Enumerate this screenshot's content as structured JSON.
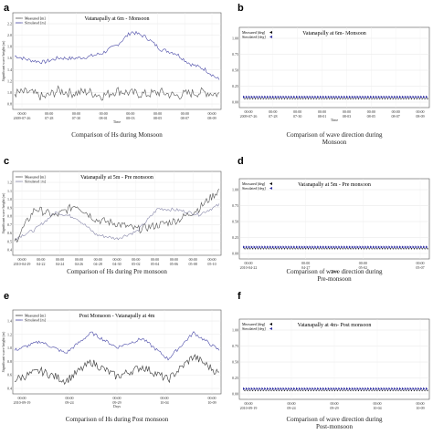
{
  "panels": [
    {
      "letter": "a",
      "title": "Vatanapally at 6m - Monsoon",
      "legend": [
        "Measured [m]",
        "Simulated [m]"
      ],
      "ylabel": "Significant wave height (m)",
      "xlabel": "Time",
      "caption": "Comparison  of Hs during Monsoon",
      "yticks": [
        "2.2",
        "2.0",
        "1.8",
        "1.6",
        "1.4",
        "1.2",
        "1.0",
        "0.8"
      ],
      "xticks": [
        [
          "00:00",
          "2009-07-26"
        ],
        [
          "00:00",
          "07-28"
        ],
        [
          "00:00",
          "07-30"
        ],
        [
          "00:00",
          "08-01"
        ],
        [
          "00:00",
          "08-03"
        ],
        [
          "00:00",
          "08-05"
        ],
        [
          "00:00",
          "08-07"
        ],
        [
          "00:00",
          "08-09"
        ]
      ],
      "colors": {
        "measured": "#555555",
        "simulated": "#4a4aa8"
      }
    },
    {
      "letter": "b",
      "title": "Vatanapally at 6m- Monsoon",
      "legend": [
        "Measured [deg]",
        "Simulated [deg]"
      ],
      "xlabel": "Time",
      "caption": "Comparison of wave direction during Monsoon",
      "yticks": [
        "1.00",
        "0.75",
        "0.50",
        "0.25",
        "0.00"
      ],
      "xticks": [
        [
          "00:00",
          "2009-07-26"
        ],
        [
          "00:00",
          "07-28"
        ],
        [
          "00:00",
          "07-30"
        ],
        [
          "00:00",
          "08-01"
        ],
        [
          "00:00",
          "08-03"
        ],
        [
          "00:00",
          "08-05"
        ],
        [
          "00:00",
          "08-07"
        ],
        [
          "00:00",
          "08-09"
        ]
      ],
      "colors": {
        "measured": "#000000",
        "simulated": "#2a2aa0"
      }
    },
    {
      "letter": "c",
      "title": "Vatanapally at 5m - Pre monsoon",
      "legend": [
        "Measured [m]",
        "Simulated [m]"
      ],
      "ylabel": "Significant wave height (m)",
      "xlabel": "",
      "caption": "Comparison of Hs during Pre monsoon",
      "yticks": [
        "1.2",
        "1.1",
        "1.0",
        "0.9",
        "0.8",
        "0.7",
        "0.6",
        "0.5",
        "0.4"
      ],
      "xticks": [
        [
          "00:00",
          "2010-04-29"
        ],
        [
          "00:00",
          "04-22"
        ],
        [
          "00:00",
          "04-24"
        ],
        [
          "00:00",
          "04-26"
        ],
        [
          "00:00",
          "04-28"
        ],
        [
          "00:00",
          "04-30"
        ],
        [
          "00:00",
          "05-02"
        ],
        [
          "00:00",
          "05-04"
        ],
        [
          "00:00",
          "05-06"
        ],
        [
          "00:00",
          "05-08"
        ],
        [
          "00:00",
          "05-10"
        ]
      ],
      "colors": {
        "measured": "#555555",
        "simulated": "#8888aa"
      }
    },
    {
      "letter": "d",
      "title": "Vatanapally at 5m - Pre monsoon",
      "legend": [
        "Measured [deg]",
        "Simulated [deg]"
      ],
      "xlabel": "Time",
      "caption": "Comparison of wave direction during Pre-monsoon",
      "yticks": [
        "1.00",
        "0.75",
        "0.50",
        "0.25",
        "0.00"
      ],
      "xticks": [
        [
          "00:00",
          "2010-04-22"
        ],
        [
          "00:00",
          "04-27"
        ],
        [
          "00:00",
          "05-02"
        ],
        [
          "00:00",
          "05-07"
        ]
      ],
      "colors": {
        "measured": "#000000",
        "simulated": "#2a2aa0"
      }
    },
    {
      "letter": "e",
      "title": "Post Monsoon - Vatanapally at 4m",
      "legend": [
        "Measured [m]",
        "Simulated [m]"
      ],
      "ylabel": "Significant wave height (m)",
      "xlabel": "Days",
      "caption": "Comparison of Hs during Post monsoon",
      "yticks": [
        "1.4",
        "1.2",
        "1.0",
        "0.8",
        "0.6",
        "0.4"
      ],
      "xticks": [
        [
          "00:00",
          "2010-09-19"
        ],
        [
          "00:00",
          "09-24"
        ],
        [
          "00:00",
          "09-29"
        ],
        [
          "00:00",
          "10-04"
        ],
        [
          "00:00",
          "10-09"
        ]
      ],
      "colors": {
        "measured": "#333333",
        "simulated": "#4a4aa8"
      }
    },
    {
      "letter": "f",
      "title": "Vatanapally at 4m- Post monsoon",
      "legend": [
        "Measured [deg]",
        "Simulated [deg]"
      ],
      "xlabel": "",
      "caption": "Comparison of wave direction during Post-monsoon",
      "yticks": [
        "1.00",
        "0.75",
        "0.50",
        "0.25",
        "0.00"
      ],
      "xticks": [
        [
          "00:00",
          "2010-09-19"
        ],
        [
          "00:00",
          "09-24"
        ],
        [
          "00:00",
          "09-29"
        ],
        [
          "00:00",
          "10-04"
        ],
        [
          "00:00",
          "10-09"
        ]
      ],
      "colors": {
        "measured": "#000000",
        "simulated": "#2a2aa0"
      }
    }
  ],
  "chart_data": [
    {
      "type": "line",
      "panel": "a",
      "title": "Vatanapally at 6m - Monsoon",
      "xlabel": "Time",
      "ylabel": "Significant wave height (m)",
      "ylim": [
        0.8,
        2.3
      ],
      "x": [
        "2009-07-26",
        "07-27",
        "07-28",
        "07-29",
        "07-30",
        "07-31",
        "08-01",
        "08-02",
        "08-03",
        "08-04",
        "08-05",
        "08-06",
        "08-07",
        "08-08",
        "08-09"
      ],
      "series": [
        {
          "name": "Simulated [m]",
          "values": [
            1.7,
            1.62,
            1.58,
            1.66,
            1.65,
            1.68,
            1.75,
            1.9,
            2.15,
            2.05,
            1.82,
            1.75,
            1.55,
            1.45,
            1.25
          ]
        },
        {
          "name": "Measured [m]",
          "values": [
            1.0,
            1.02,
            0.92,
            1.05,
            1.0,
            1.03,
            0.95,
            1.05,
            1.0,
            0.98,
            1.02,
            0.95,
            1.0,
            1.02,
            0.98
          ]
        }
      ]
    },
    {
      "type": "scatter",
      "panel": "b",
      "title": "Vatanapally at 6m- Monsoon",
      "xlabel": "Time",
      "ylim": [
        0,
        1
      ],
      "series": [
        {
          "name": "Measured [deg]",
          "level": 0.08
        },
        {
          "name": "Simulated [deg]",
          "level": 0.08
        }
      ]
    },
    {
      "type": "line",
      "panel": "c",
      "title": "Vatanapally at 5m - Pre monsoon",
      "ylabel": "Significant wave height (m)",
      "ylim": [
        0.35,
        1.25
      ],
      "x": [
        "2010-04-29",
        "04-22",
        "04-24",
        "04-26",
        "04-28",
        "04-30",
        "05-02",
        "05-04",
        "05-06",
        "05-08",
        "05-10"
      ],
      "series": [
        {
          "name": "Simulated [m]",
          "values": [
            0.5,
            0.62,
            0.85,
            0.78,
            0.55,
            0.5,
            0.6,
            0.9,
            0.88,
            0.82,
            0.95
          ]
        },
        {
          "name": "Measured [m]",
          "values": [
            0.45,
            0.9,
            0.8,
            0.95,
            0.75,
            0.7,
            0.62,
            0.68,
            0.75,
            0.9,
            1.15
          ]
        }
      ]
    },
    {
      "type": "scatter",
      "panel": "d",
      "title": "Vatanapally at 5m - Pre monsoon",
      "xlabel": "Time",
      "ylim": [
        0,
        1
      ],
      "series": [
        {
          "name": "Measured [deg]",
          "level": 0.1
        },
        {
          "name": "Simulated [deg]",
          "level": 0.1
        }
      ]
    },
    {
      "type": "line",
      "panel": "e",
      "title": "Post Monsoon - Vatanapally at 4m",
      "xlabel": "Days",
      "ylabel": "Significant wave height (m)",
      "ylim": [
        0.35,
        1.5
      ],
      "x": [
        "2010-09-19",
        "09-21",
        "09-24",
        "09-26",
        "09-29",
        "10-01",
        "10-04",
        "10-06",
        "10-09"
      ],
      "series": [
        {
          "name": "Simulated [m]",
          "values": [
            1.0,
            1.15,
            0.95,
            1.3,
            1.05,
            1.2,
            0.85,
            1.3,
            1.0
          ]
        },
        {
          "name": "Measured [m]",
          "values": [
            0.5,
            0.65,
            0.48,
            0.8,
            0.55,
            0.72,
            0.5,
            0.9,
            0.6
          ]
        }
      ]
    },
    {
      "type": "scatter",
      "panel": "f",
      "title": "Vatanapally at 4m- Post monsoon",
      "ylim": [
        0,
        1
      ],
      "series": [
        {
          "name": "Measured [deg]",
          "level": 0.08
        },
        {
          "name": "Simulated [deg]",
          "level": 0.08
        }
      ]
    }
  ]
}
